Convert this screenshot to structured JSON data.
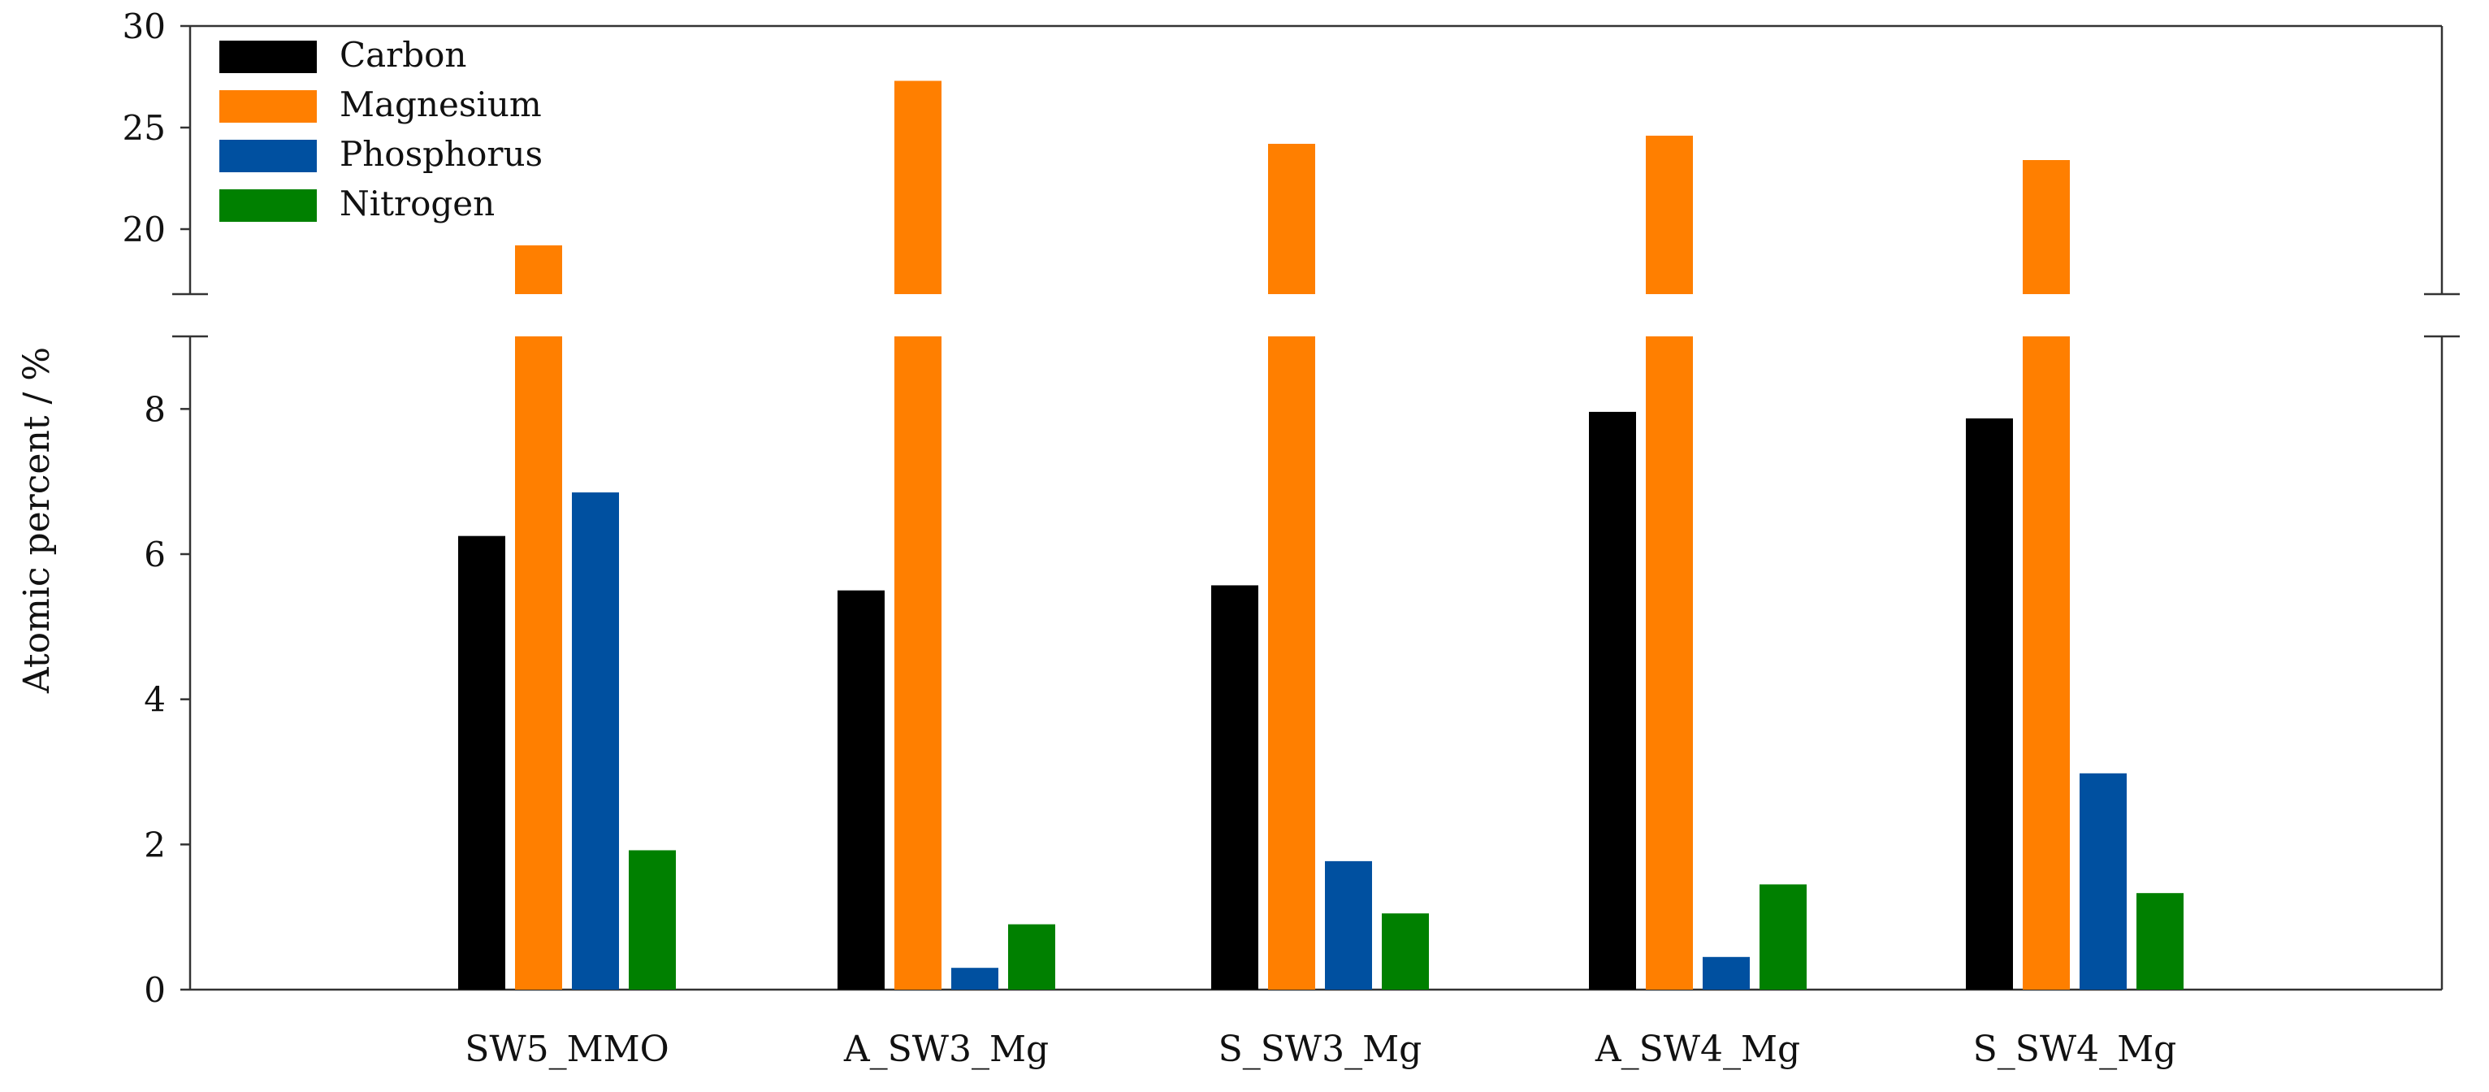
{
  "chart_data": {
    "type": "bar",
    "categories": [
      "SW5_MMO",
      "A_SW3_Mg",
      "S_SW3_Mg",
      "A_SW4_Mg",
      "S_SW4_Mg"
    ],
    "series": [
      {
        "name": "Carbon",
        "color": "#000000",
        "values": [
          6.25,
          5.5,
          5.57,
          7.96,
          7.87
        ]
      },
      {
        "name": "Magnesium",
        "color": "#ff7f00",
        "values": [
          19.2,
          27.3,
          24.2,
          24.6,
          23.4
        ]
      },
      {
        "name": "Phosphorus",
        "color": "#0050a0",
        "values": [
          6.85,
          0.3,
          1.77,
          0.45,
          2.98
        ]
      },
      {
        "name": "Nitrogen",
        "color": "#008000",
        "values": [
          1.92,
          0.9,
          1.05,
          1.45,
          1.33
        ]
      }
    ],
    "ylabel": "Atomic percent / %",
    "xlabel": "",
    "axis_break": {
      "lower_range": [
        0,
        9
      ],
      "upper_range": [
        16.8,
        30
      ]
    },
    "y_ticks_lower": [
      0,
      2,
      4,
      6,
      8
    ],
    "y_ticks_upper": [
      20,
      25,
      30
    ],
    "legend_position": "top-left"
  }
}
